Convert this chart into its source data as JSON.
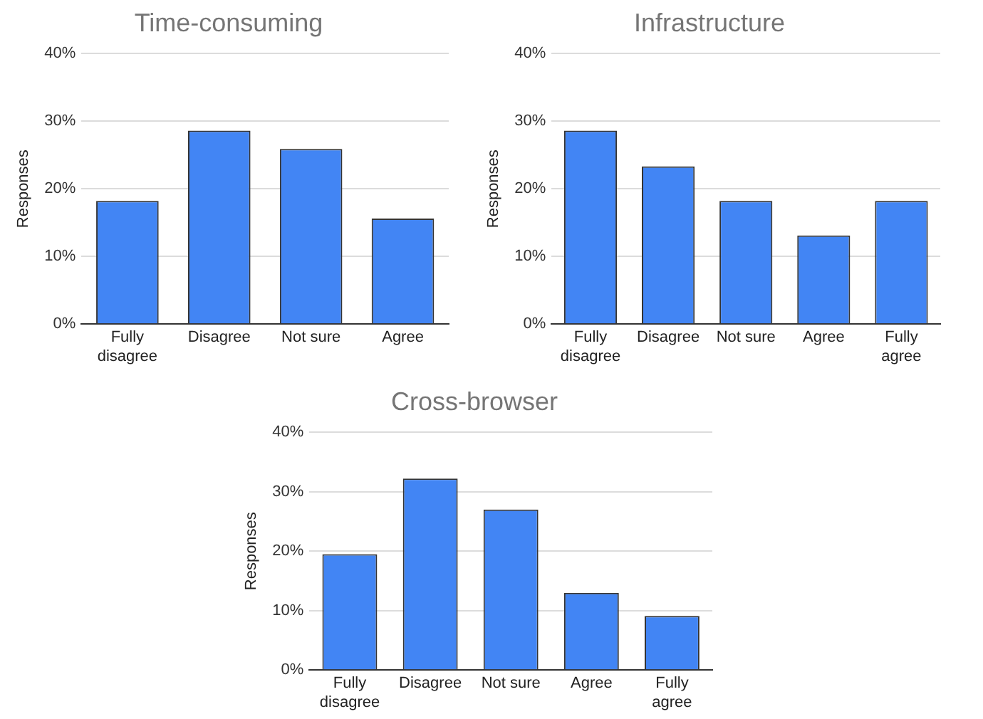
{
  "chart_data": [
    {
      "type": "bar",
      "title": "Time-consuming",
      "ylabel": "Responses",
      "categories": [
        "Fully disagree",
        "Disagree",
        "Not sure",
        "Agree"
      ],
      "values": [
        18.2,
        28.6,
        25.9,
        15.6
      ],
      "color": "#4285f4",
      "ylim": [
        0,
        40
      ],
      "yticks": [
        {
          "value": 0,
          "label": "0%"
        },
        {
          "value": 10,
          "label": "10%"
        },
        {
          "value": 20,
          "label": "20%"
        },
        {
          "value": 30,
          "label": "30%"
        },
        {
          "value": 40,
          "label": "40%"
        }
      ],
      "grid": "y",
      "legend": false
    },
    {
      "type": "bar",
      "title": "Infrastructure",
      "ylabel": "Responses",
      "categories": [
        "Fully disagree",
        "Disagree",
        "Not sure",
        "Agree",
        "Fully agree"
      ],
      "values": [
        28.6,
        23.3,
        18.2,
        13.1,
        18.2
      ],
      "color": "#4285f4",
      "ylim": [
        0,
        40
      ],
      "yticks": [
        {
          "value": 0,
          "label": "0%"
        },
        {
          "value": 10,
          "label": "10%"
        },
        {
          "value": 20,
          "label": "20%"
        },
        {
          "value": 30,
          "label": "30%"
        },
        {
          "value": 40,
          "label": "40%"
        }
      ],
      "grid": "y",
      "legend": false
    },
    {
      "type": "bar",
      "title": "Cross-browser",
      "ylabel": "Responses",
      "categories": [
        "Fully disagree",
        "Disagree",
        "Not sure",
        "Agree",
        "Fully agree"
      ],
      "values": [
        19.5,
        32.2,
        27.0,
        13.0,
        9.1
      ],
      "color": "#4285f4",
      "ylim": [
        0,
        40
      ],
      "yticks": [
        {
          "value": 0,
          "label": "0%"
        },
        {
          "value": 10,
          "label": "10%"
        },
        {
          "value": 20,
          "label": "20%"
        },
        {
          "value": 30,
          "label": "30%"
        },
        {
          "value": 40,
          "label": "40%"
        }
      ],
      "grid": "y",
      "legend": false
    }
  ]
}
